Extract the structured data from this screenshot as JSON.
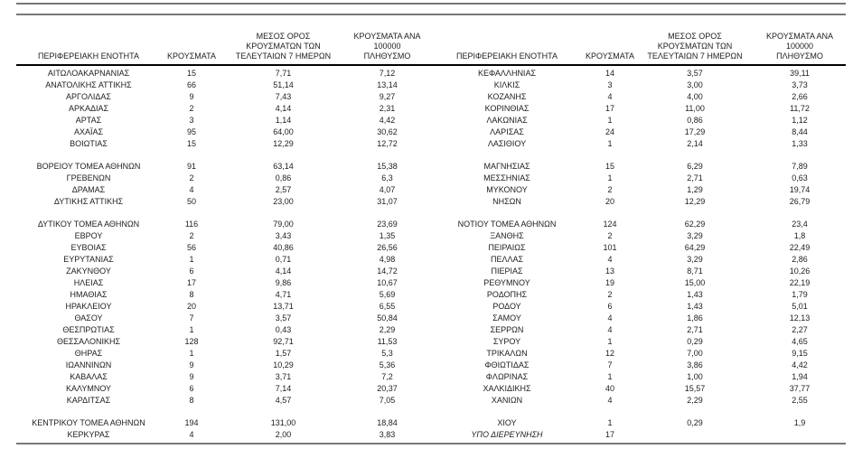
{
  "colors": {
    "rule_gray": "#787878",
    "header_rule_black": "#000000",
    "text": "#1d1d1d",
    "background": "#ffffff"
  },
  "table": {
    "headers": {
      "region": "ΠΕΡΙΦΕΡΕΙΑΚΗ ΕΝΟΤΗΤΑ",
      "cases": "ΚΡΟΥΣΜΑΤΑ",
      "avg7": "ΜΕΣΟΣ ΟΡΟΣ\nΚΡΟΥΣΜΑΤΩΝ ΤΩΝ\nΤΕΛΕΥΤΑΙΩΝ 7 ΗΜΕΡΩΝ",
      "per100k": "ΚΡΟΥΣΜΑΤΑ ΑΝΑ 100000\nΠΛΗΘΥΣΜΟ"
    },
    "rows": [
      {
        "left": [
          "ΑΙΤΩΛΟΑΚΑΡΝΑΝΙΑΣ",
          "15",
          "7,71",
          "7,12"
        ],
        "right": [
          "ΚΕΦΑΛΛΗΝΙΑΣ",
          "14",
          "3,57",
          "39,11"
        ]
      },
      {
        "left": [
          "ΑΝΑΤΟΛΙΚΗΣ ΑΤΤΙΚΗΣ",
          "66",
          "51,14",
          "13,14"
        ],
        "right": [
          "ΚΙΛΚΙΣ",
          "3",
          "3,00",
          "3,73"
        ]
      },
      {
        "left": [
          "ΑΡΓΟΛΙΔΑΣ",
          "9",
          "7,43",
          "9,27"
        ],
        "right": [
          "ΚΟΖΑΝΗΣ",
          "4",
          "4,00",
          "2,66"
        ]
      },
      {
        "left": [
          "ΑΡΚΑΔΙΑΣ",
          "2",
          "4,14",
          "2,31"
        ],
        "right": [
          "ΚΟΡΙΝΘΙΑΣ",
          "17",
          "11,00",
          "11,72"
        ]
      },
      {
        "left": [
          "ΑΡΤΑΣ",
          "3",
          "1,14",
          "4,42"
        ],
        "right": [
          "ΛΑΚΩΝΙΑΣ",
          "1",
          "0,86",
          "1,12"
        ]
      },
      {
        "left": [
          "ΑΧΑΪΑΣ",
          "95",
          "64,00",
          "30,62"
        ],
        "right": [
          "ΛΑΡΙΣΑΣ",
          "24",
          "17,29",
          "8,44"
        ]
      },
      {
        "left": [
          "ΒΟΙΩΤΙΑΣ",
          "15",
          "12,29",
          "12,72"
        ],
        "right": [
          "ΛΑΣΙΘΙΟΥ",
          "1",
          "2,14",
          "1,33"
        ]
      },
      {
        "spacer": true
      },
      {
        "left": [
          "ΒΟΡΕΙΟΥ ΤΟΜΕΑ ΑΘΗΝΩΝ",
          "91",
          "63,14",
          "15,38"
        ],
        "right": [
          "ΜΑΓΝΗΣΙΑΣ",
          "15",
          "6,29",
          "7,89"
        ]
      },
      {
        "left": [
          "ΓΡΕΒΕΝΩΝ",
          "2",
          "0,86",
          "6,3"
        ],
        "right": [
          "ΜΕΣΣΗΝΙΑΣ",
          "1",
          "2,71",
          "0,63"
        ]
      },
      {
        "left": [
          "ΔΡΑΜΑΣ",
          "4",
          "2,57",
          "4,07"
        ],
        "right": [
          "ΜΥΚΟΝΟΥ",
          "2",
          "1,29",
          "19,74"
        ]
      },
      {
        "left": [
          "ΔΥΤΙΚΗΣ ΑΤΤΙΚΗΣ",
          "50",
          "23,00",
          "31,07"
        ],
        "right": [
          "ΝΗΣΩΝ",
          "20",
          "12,29",
          "26,79"
        ]
      },
      {
        "spacer": true
      },
      {
        "left": [
          "ΔΥΤΙΚΟΥ ΤΟΜΕΑ ΑΘΗΝΩΝ",
          "116",
          "79,00",
          "23,69"
        ],
        "right": [
          "ΝΟΤΙΟΥ ΤΟΜΕΑ ΑΘΗΝΩΝ",
          "124",
          "62,29",
          "23,4"
        ]
      },
      {
        "left": [
          "ΕΒΡΟΥ",
          "2",
          "3,43",
          "1,35"
        ],
        "right": [
          "ΞΑΝΘΗΣ",
          "2",
          "3,29",
          "1,8"
        ]
      },
      {
        "left": [
          "ΕΥΒΟΙΑΣ",
          "56",
          "40,86",
          "26,56"
        ],
        "right": [
          "ΠΕΙΡΑΙΩΣ",
          "101",
          "64,29",
          "22,49"
        ]
      },
      {
        "left": [
          "ΕΥΡΥΤΑΝΙΑΣ",
          "1",
          "0,71",
          "4,98"
        ],
        "right": [
          "ΠΕΛΛΑΣ",
          "4",
          "3,29",
          "2,86"
        ]
      },
      {
        "left": [
          "ΖΑΚΥΝΘΟΥ",
          "6",
          "4,14",
          "14,72"
        ],
        "right": [
          "ΠΙΕΡΙΑΣ",
          "13",
          "8,71",
          "10,26"
        ]
      },
      {
        "left": [
          "ΗΛΕΙΑΣ",
          "17",
          "9,86",
          "10,67"
        ],
        "right": [
          "ΡΕΘΥΜΝΟΥ",
          "19",
          "15,00",
          "22,19"
        ]
      },
      {
        "left": [
          "ΗΜΑΘΙΑΣ",
          "8",
          "4,71",
          "5,69"
        ],
        "right": [
          "ΡΟΔΟΠΗΣ",
          "2",
          "1,43",
          "1,79"
        ]
      },
      {
        "left": [
          "ΗΡΑΚΛΕΙΟΥ",
          "20",
          "13,71",
          "6,55"
        ],
        "right": [
          "ΡΟΔΟΥ",
          "6",
          "1,43",
          "5,01"
        ]
      },
      {
        "left": [
          "ΘΑΣΟΥ",
          "7",
          "3,57",
          "50,84"
        ],
        "right": [
          "ΣΑΜΟΥ",
          "4",
          "1,86",
          "12,13"
        ]
      },
      {
        "left": [
          "ΘΕΣΠΡΩΤΙΑΣ",
          "1",
          "0,43",
          "2,29"
        ],
        "right": [
          "ΣΕΡΡΩΝ",
          "4",
          "2,71",
          "2,27"
        ]
      },
      {
        "left": [
          "ΘΕΣΣΑΛΟΝΙΚΗΣ",
          "128",
          "92,71",
          "11,53"
        ],
        "right": [
          "ΣΥΡΟΥ",
          "1",
          "0,29",
          "4,65"
        ]
      },
      {
        "left": [
          "ΘΗΡΑΣ",
          "1",
          "1,57",
          "5,3"
        ],
        "right": [
          "ΤΡΙΚΑΛΩΝ",
          "12",
          "7,00",
          "9,15"
        ]
      },
      {
        "left": [
          "ΙΩΑΝΝΙΝΩΝ",
          "9",
          "10,29",
          "5,36"
        ],
        "right": [
          "ΦΘΙΩΤΙΔΑΣ",
          "7",
          "3,86",
          "4,42"
        ]
      },
      {
        "left": [
          "ΚΑΒΑΛΑΣ",
          "9",
          "3,71",
          "7,2"
        ],
        "right": [
          "ΦΛΩΡΙΝΑΣ",
          "1",
          "1,00",
          "1,94"
        ]
      },
      {
        "left": [
          "ΚΑΛΥΜΝΟΥ",
          "6",
          "7,14",
          "20,37"
        ],
        "right": [
          "ΧΑΛΚΙΔΙΚΗΣ",
          "40",
          "15,57",
          "37,77"
        ]
      },
      {
        "left": [
          "ΚΑΡΔΙΤΣΑΣ",
          "8",
          "4,57",
          "7,05"
        ],
        "right": [
          "ΧΑΝΙΩΝ",
          "4",
          "2,29",
          "2,55"
        ]
      },
      {
        "spacer": true
      },
      {
        "left": [
          "ΚΕΝΤΡΙΚΟΥ ΤΟΜΕΑ ΑΘΗΝΩΝ",
          "194",
          "131,00",
          "18,84"
        ],
        "right": [
          "ΧΙΟΥ",
          "1",
          "0,29",
          "1,9"
        ]
      },
      {
        "left": [
          "ΚΕΡΚΥΡΑΣ",
          "4",
          "2,00",
          "3,83"
        ],
        "right": [
          "ΥΠΟ ΔΙΕΡΕΥΝΗΣΗ",
          "17",
          "",
          ""
        ],
        "right_name_italic": true
      }
    ]
  }
}
